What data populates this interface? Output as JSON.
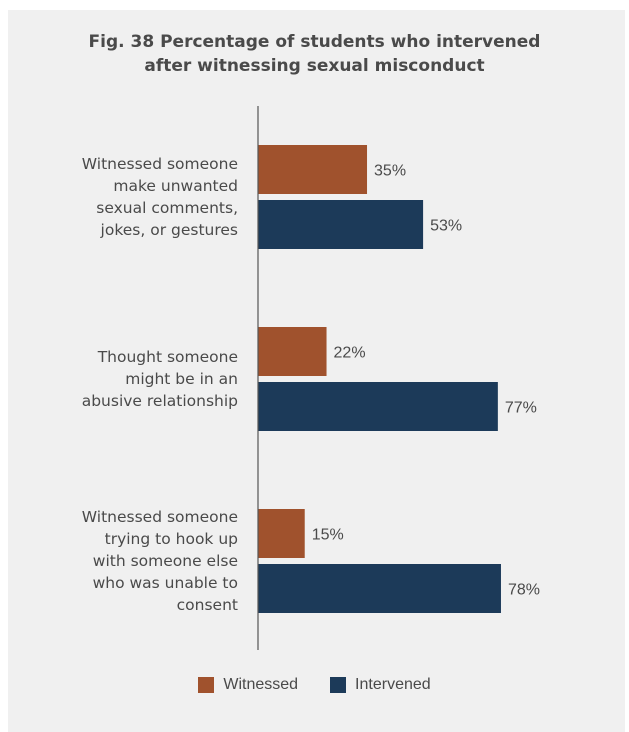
{
  "chart_data": {
    "type": "bar",
    "orientation": "horizontal",
    "title_lines": [
      "Fig. 38 Percentage of students who intervened",
      "after witnessing sexual misconduct"
    ],
    "categories": [
      {
        "lines": [
          "Witnessed someone",
          "make unwanted",
          "sexual comments,",
          "jokes, or gestures"
        ]
      },
      {
        "lines": [
          "Thought someone",
          "might be in an",
          "abusive relationship"
        ]
      },
      {
        "lines": [
          "Witnessed someone",
          "trying to hook up",
          "with someone else",
          "who was unable to",
          "consent"
        ]
      }
    ],
    "series": [
      {
        "name": "Witnessed",
        "color": "#a0522d",
        "values": [
          35,
          22,
          15
        ],
        "labels": [
          "35%",
          "22%",
          "15%"
        ]
      },
      {
        "name": "Intervened",
        "color": "#1c3a59",
        "values": [
          53,
          77,
          78
        ],
        "labels": [
          "53%",
          "77%",
          "78%"
        ]
      }
    ],
    "xlim": [
      0,
      100
    ],
    "grid": false,
    "legend_position": "bottom"
  }
}
